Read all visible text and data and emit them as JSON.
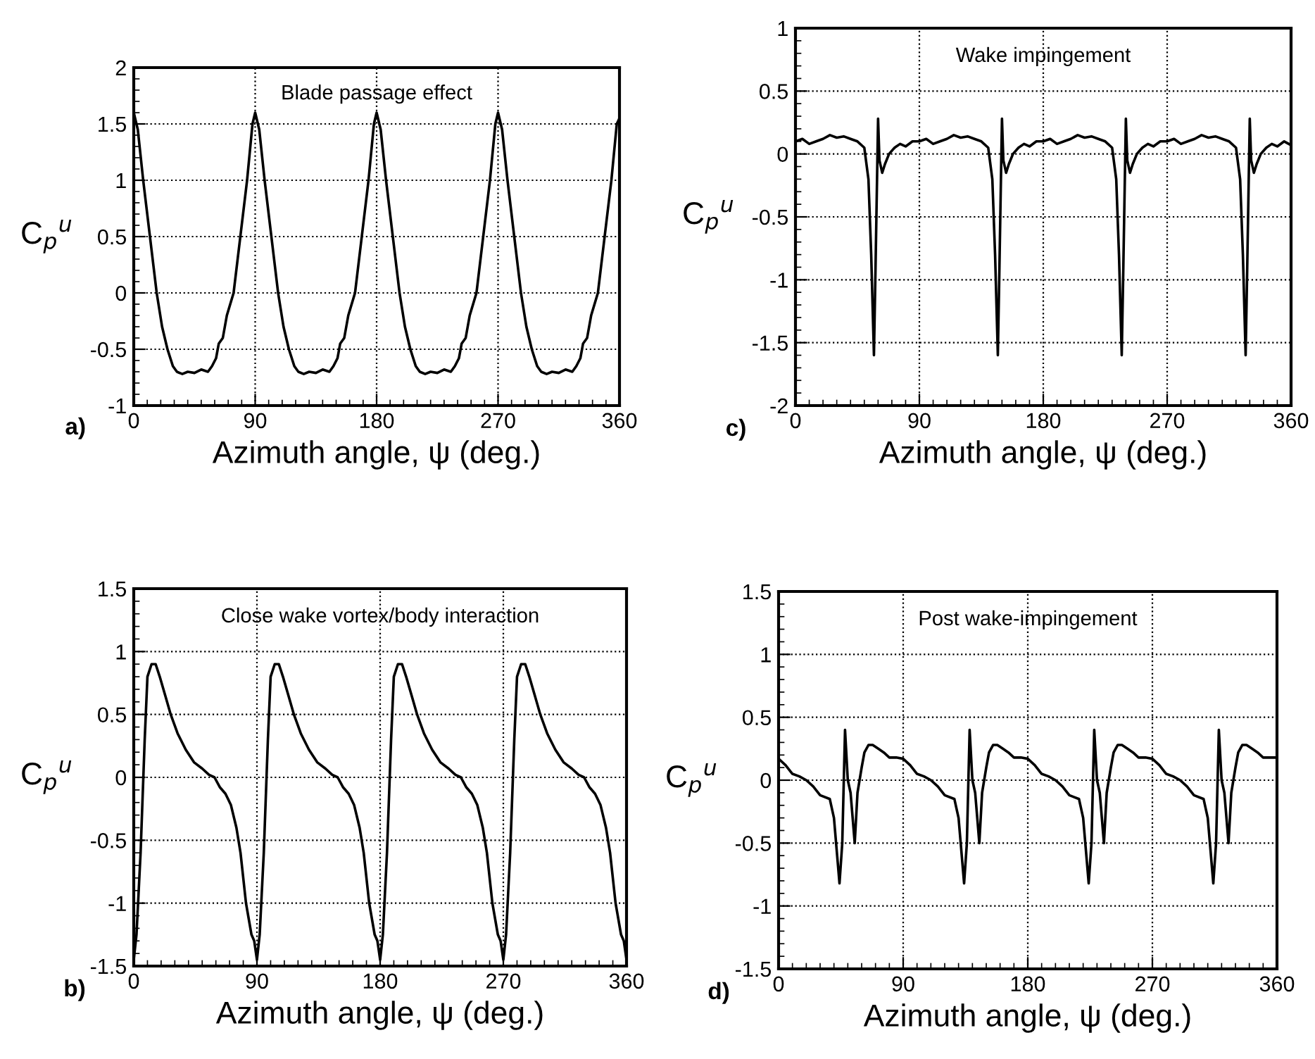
{
  "chart_data": [
    {
      "type": "line",
      "title": "Blade passage effect",
      "xlabel": "Azimuth angle, ψ (deg.)",
      "ylabel": "C$_{p}$$^{u}$",
      "annotations": [
        "a)"
      ],
      "grid": true,
      "xlim": [
        0,
        360
      ],
      "xticks": [
        0,
        90,
        180,
        270,
        360
      ],
      "ylim": [
        -1,
        2
      ],
      "yticks": [
        -1,
        -0.5,
        0,
        0.5,
        1,
        1.5,
        2
      ],
      "series": [
        {
          "color": "#000000",
          "x": [
            0,
            3,
            7,
            12,
            17,
            21,
            25,
            29,
            32,
            36,
            40,
            45,
            50,
            55,
            58,
            61,
            63,
            66,
            69,
            74,
            79,
            84,
            88,
            90,
            93,
            97,
            102,
            107,
            111,
            115,
            119,
            122,
            126,
            130,
            135,
            140,
            145,
            148,
            151,
            153,
            156,
            159,
            164,
            169,
            174,
            178,
            180,
            183,
            187,
            192,
            197,
            201,
            205,
            209,
            212,
            216,
            220,
            225,
            230,
            235,
            238,
            241,
            243,
            246,
            249,
            254,
            259,
            264,
            268,
            270,
            273,
            277,
            282,
            287,
            291,
            295,
            299,
            302,
            306,
            310,
            315,
            320,
            325,
            328,
            331,
            333,
            336,
            339,
            344,
            349,
            354,
            358,
            360
          ],
          "values": [
            1.6,
            1.45,
            1.0,
            0.5,
            0.0,
            -0.3,
            -0.5,
            -0.65,
            -0.7,
            -0.72,
            -0.7,
            -0.71,
            -0.68,
            -0.7,
            -0.65,
            -0.58,
            -0.45,
            -0.4,
            -0.2,
            0.0,
            0.5,
            1.0,
            1.5,
            1.6,
            1.45,
            1.0,
            0.5,
            0.0,
            -0.3,
            -0.5,
            -0.65,
            -0.7,
            -0.72,
            -0.7,
            -0.71,
            -0.68,
            -0.7,
            -0.65,
            -0.58,
            -0.45,
            -0.4,
            -0.2,
            0.0,
            0.5,
            1.0,
            1.5,
            1.6,
            1.45,
            1.0,
            0.5,
            0.0,
            -0.3,
            -0.5,
            -0.65,
            -0.7,
            -0.72,
            -0.7,
            -0.71,
            -0.68,
            -0.7,
            -0.65,
            -0.58,
            -0.45,
            -0.4,
            -0.2,
            0.0,
            0.5,
            1.0,
            1.5,
            1.6,
            1.45,
            1.0,
            0.5,
            0.0,
            -0.3,
            -0.5,
            -0.65,
            -0.7,
            -0.72,
            -0.7,
            -0.71,
            -0.68,
            -0.7,
            -0.65,
            -0.58,
            -0.45,
            -0.4,
            -0.2,
            0.0,
            0.5,
            1.0,
            1.5,
            1.55
          ]
        }
      ]
    },
    {
      "type": "line",
      "title": "Wake impingement",
      "xlabel": "Azimuth angle, ψ (deg.)",
      "ylabel": "C$_{p}$$^{u}$",
      "annotations": [
        "c)"
      ],
      "grid": true,
      "xlim": [
        0,
        360
      ],
      "xticks": [
        0,
        90,
        180,
        270,
        360
      ],
      "ylim": [
        -2,
        1
      ],
      "yticks": [
        -2,
        -1.5,
        -1,
        -0.5,
        0,
        0.5,
        1
      ],
      "series": [
        {
          "color": "#000000",
          "x": [
            0,
            5,
            10,
            15,
            20,
            25,
            30,
            35,
            40,
            45,
            50,
            53,
            55,
            57,
            58,
            60,
            61,
            63,
            65,
            68,
            72,
            76,
            80,
            85,
            90,
            95,
            100,
            105,
            110,
            115,
            120,
            125,
            130,
            135,
            140,
            143,
            145,
            147,
            148,
            150,
            151,
            153,
            155,
            158,
            162,
            166,
            170,
            175,
            180,
            185,
            190,
            195,
            200,
            205,
            210,
            215,
            220,
            225,
            230,
            233,
            235,
            237,
            238,
            240,
            241,
            243,
            245,
            248,
            252,
            256,
            260,
            265,
            270,
            275,
            280,
            285,
            290,
            295,
            300,
            305,
            310,
            315,
            320,
            323,
            325,
            327,
            328,
            330,
            331,
            333,
            335,
            338,
            342,
            346,
            350,
            355,
            360
          ],
          "values": [
            0.1,
            0.12,
            0.08,
            0.1,
            0.12,
            0.15,
            0.13,
            0.14,
            0.12,
            0.1,
            0.05,
            -0.2,
            -0.8,
            -1.6,
            -1.0,
            0.28,
            -0.05,
            -0.15,
            -0.08,
            0.0,
            0.05,
            0.08,
            0.06,
            0.1,
            0.1,
            0.12,
            0.08,
            0.1,
            0.12,
            0.15,
            0.13,
            0.14,
            0.12,
            0.1,
            0.05,
            -0.2,
            -0.8,
            -1.6,
            -1.0,
            0.28,
            -0.05,
            -0.15,
            -0.08,
            0.0,
            0.05,
            0.08,
            0.06,
            0.1,
            0.1,
            0.12,
            0.08,
            0.1,
            0.12,
            0.15,
            0.13,
            0.14,
            0.12,
            0.1,
            0.05,
            -0.2,
            -0.8,
            -1.6,
            -1.0,
            0.28,
            -0.05,
            -0.15,
            -0.08,
            0.0,
            0.05,
            0.08,
            0.06,
            0.1,
            0.1,
            0.12,
            0.08,
            0.1,
            0.12,
            0.15,
            0.13,
            0.14,
            0.12,
            0.1,
            0.05,
            -0.2,
            -0.8,
            -1.6,
            -1.0,
            0.28,
            -0.05,
            -0.15,
            -0.08,
            0.0,
            0.05,
            0.08,
            0.06,
            0.1,
            0.07
          ]
        }
      ]
    },
    {
      "type": "line",
      "title": "Close wake vortex/body interaction",
      "xlabel": "Azimuth angle, ψ (deg.)",
      "ylabel": "C$_{p}$$^{u}$",
      "annotations": [
        "b)"
      ],
      "grid": true,
      "xlim": [
        0,
        360
      ],
      "xticks": [
        0,
        90,
        180,
        270,
        360
      ],
      "ylim": [
        -1.5,
        1.5
      ],
      "yticks": [
        -1.5,
        -1,
        -0.5,
        0,
        0.5,
        1,
        1.5
      ],
      "series": [
        {
          "color": "#000000",
          "x": [
            0,
            2,
            5,
            8,
            10,
            13,
            16,
            19,
            23,
            27,
            32,
            38,
            44,
            50,
            55,
            59,
            63,
            67,
            71,
            75,
            78,
            82,
            86,
            88,
            90,
            92,
            95,
            98,
            100,
            103,
            106,
            109,
            113,
            117,
            122,
            128,
            134,
            140,
            145,
            149,
            153,
            157,
            161,
            165,
            168,
            172,
            176,
            178,
            180,
            182,
            185,
            188,
            190,
            193,
            196,
            199,
            203,
            207,
            212,
            218,
            224,
            230,
            235,
            239,
            243,
            247,
            251,
            255,
            258,
            262,
            266,
            268,
            270,
            272,
            275,
            278,
            280,
            283,
            286,
            289,
            293,
            297,
            302,
            308,
            314,
            320,
            325,
            329,
            333,
            337,
            341,
            345,
            348,
            352,
            356,
            358,
            360
          ],
          "values": [
            -1.45,
            -1.25,
            -0.6,
            0.3,
            0.8,
            0.9,
            0.9,
            0.8,
            0.65,
            0.5,
            0.35,
            0.22,
            0.12,
            0.07,
            0.02,
            0.0,
            -0.08,
            -0.13,
            -0.22,
            -0.4,
            -0.6,
            -1.0,
            -1.25,
            -1.3,
            -1.45,
            -1.25,
            -0.6,
            0.3,
            0.8,
            0.9,
            0.9,
            0.8,
            0.65,
            0.5,
            0.35,
            0.22,
            0.12,
            0.07,
            0.02,
            0.0,
            -0.08,
            -0.13,
            -0.22,
            -0.4,
            -0.6,
            -1.0,
            -1.25,
            -1.3,
            -1.45,
            -1.25,
            -0.6,
            0.3,
            0.8,
            0.9,
            0.9,
            0.8,
            0.65,
            0.5,
            0.35,
            0.22,
            0.12,
            0.07,
            0.02,
            0.0,
            -0.08,
            -0.13,
            -0.22,
            -0.4,
            -0.6,
            -1.0,
            -1.25,
            -1.3,
            -1.45,
            -1.25,
            -0.6,
            0.3,
            0.8,
            0.9,
            0.9,
            0.8,
            0.65,
            0.5,
            0.35,
            0.22,
            0.12,
            0.07,
            0.02,
            0.0,
            -0.08,
            -0.13,
            -0.22,
            -0.4,
            -0.6,
            -1.0,
            -1.25,
            -1.3,
            -1.45
          ]
        }
      ]
    },
    {
      "type": "line",
      "title": "Post wake-impingement",
      "xlabel": "Azimuth angle, ψ (deg.)",
      "ylabel": "C$_{p}$$^{u}$",
      "annotations": [
        "d)"
      ],
      "grid": true,
      "xlim": [
        0,
        360
      ],
      "xticks": [
        0,
        90,
        180,
        270,
        360
      ],
      "ylim": [
        -1.5,
        1.5
      ],
      "yticks": [
        -1.5,
        -1,
        -0.5,
        0,
        0.5,
        1,
        1.5
      ],
      "series": [
        {
          "color": "#000000",
          "x": [
            0,
            5,
            10,
            15,
            20,
            25,
            30,
            37,
            40,
            44,
            46,
            48,
            50,
            52,
            55,
            57,
            60,
            62,
            65,
            68,
            72,
            76,
            80,
            85,
            90,
            95,
            100,
            105,
            110,
            115,
            120,
            127,
            130,
            134,
            136,
            138,
            140,
            142,
            145,
            147,
            150,
            152,
            155,
            158,
            162,
            166,
            170,
            175,
            180,
            185,
            190,
            195,
            200,
            205,
            210,
            217,
            220,
            224,
            226,
            228,
            230,
            232,
            235,
            237,
            240,
            242,
            245,
            248,
            252,
            256,
            260,
            265,
            270,
            275,
            280,
            285,
            290,
            295,
            300,
            307,
            310,
            314,
            316,
            318,
            320,
            322,
            325,
            327,
            330,
            332,
            335,
            338,
            342,
            346,
            350,
            355,
            360
          ],
          "values": [
            0.17,
            0.12,
            0.05,
            0.03,
            0.0,
            -0.05,
            -0.12,
            -0.15,
            -0.3,
            -0.82,
            -0.5,
            0.4,
            0.0,
            -0.1,
            -0.5,
            -0.1,
            0.1,
            0.22,
            0.28,
            0.28,
            0.25,
            0.22,
            0.18,
            0.18,
            0.17,
            0.12,
            0.05,
            0.03,
            0.0,
            -0.05,
            -0.12,
            -0.15,
            -0.3,
            -0.82,
            -0.5,
            0.4,
            0.0,
            -0.1,
            -0.5,
            -0.1,
            0.1,
            0.22,
            0.28,
            0.28,
            0.25,
            0.22,
            0.18,
            0.18,
            0.17,
            0.12,
            0.05,
            0.03,
            0.0,
            -0.05,
            -0.12,
            -0.15,
            -0.3,
            -0.82,
            -0.5,
            0.4,
            0.0,
            -0.1,
            -0.5,
            -0.1,
            0.1,
            0.22,
            0.28,
            0.28,
            0.25,
            0.22,
            0.18,
            0.18,
            0.17,
            0.12,
            0.05,
            0.03,
            0.0,
            -0.05,
            -0.12,
            -0.15,
            -0.3,
            -0.82,
            -0.5,
            0.4,
            0.0,
            -0.1,
            -0.5,
            -0.1,
            0.1,
            0.22,
            0.28,
            0.28,
            0.25,
            0.22,
            0.18,
            0.18,
            0.18
          ]
        }
      ]
    }
  ]
}
